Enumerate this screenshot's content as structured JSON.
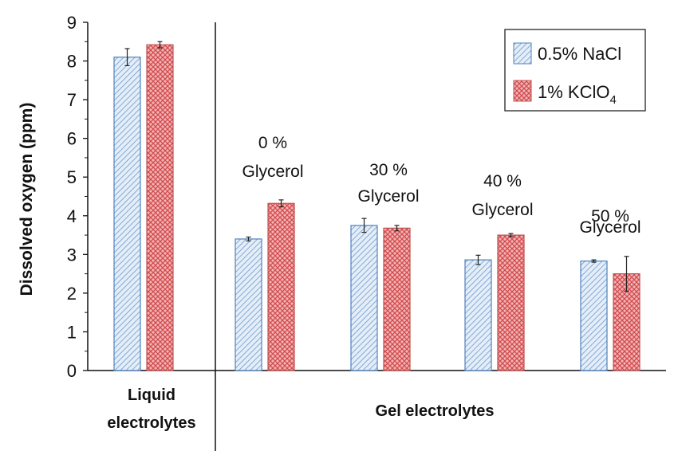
{
  "chart_data": {
    "type": "bar",
    "ylabel": "Dissolved oxygen (ppm)",
    "ylim": [
      0,
      9
    ],
    "yticks": [
      0,
      1,
      2,
      3,
      4,
      5,
      6,
      7,
      8,
      9
    ],
    "grid": false,
    "legend_position": "top-right",
    "categories": [
      "Liquid",
      "0 % Glycerol",
      "30 % Glycerol",
      "40 % Glycerol",
      "50 % Glycerol"
    ],
    "series": [
      {
        "name": "0.5% NaCl",
        "color": "#c6d9f1",
        "stroke": "#4f81bd",
        "pattern": "diagonal-lines",
        "values": [
          8.1,
          3.4,
          3.75,
          2.86,
          2.83
        ],
        "errors": [
          0.22,
          0.05,
          0.18,
          0.12,
          0.03
        ]
      },
      {
        "name": "1% KClO",
        "name_subscript": "4",
        "color": "#e6696c",
        "stroke": "#c0504d",
        "pattern": "cross-hatch",
        "values": [
          8.42,
          4.32,
          3.68,
          3.5,
          2.5
        ],
        "errors": [
          0.08,
          0.09,
          0.07,
          0.04,
          0.45
        ]
      }
    ],
    "group_labels": [
      "Liquid electrolytes",
      "Gel electrolytes"
    ],
    "group_label_lines": [
      [
        "Liquid",
        "electrolytes"
      ],
      [
        "Gel electrolytes"
      ]
    ],
    "annotations": [
      [
        "0 %",
        "Glycerol"
      ],
      [
        "30 %",
        "Glycerol"
      ],
      [
        "40 %",
        "Glycerol"
      ],
      [
        "50 %",
        "Glycerol"
      ]
    ]
  }
}
